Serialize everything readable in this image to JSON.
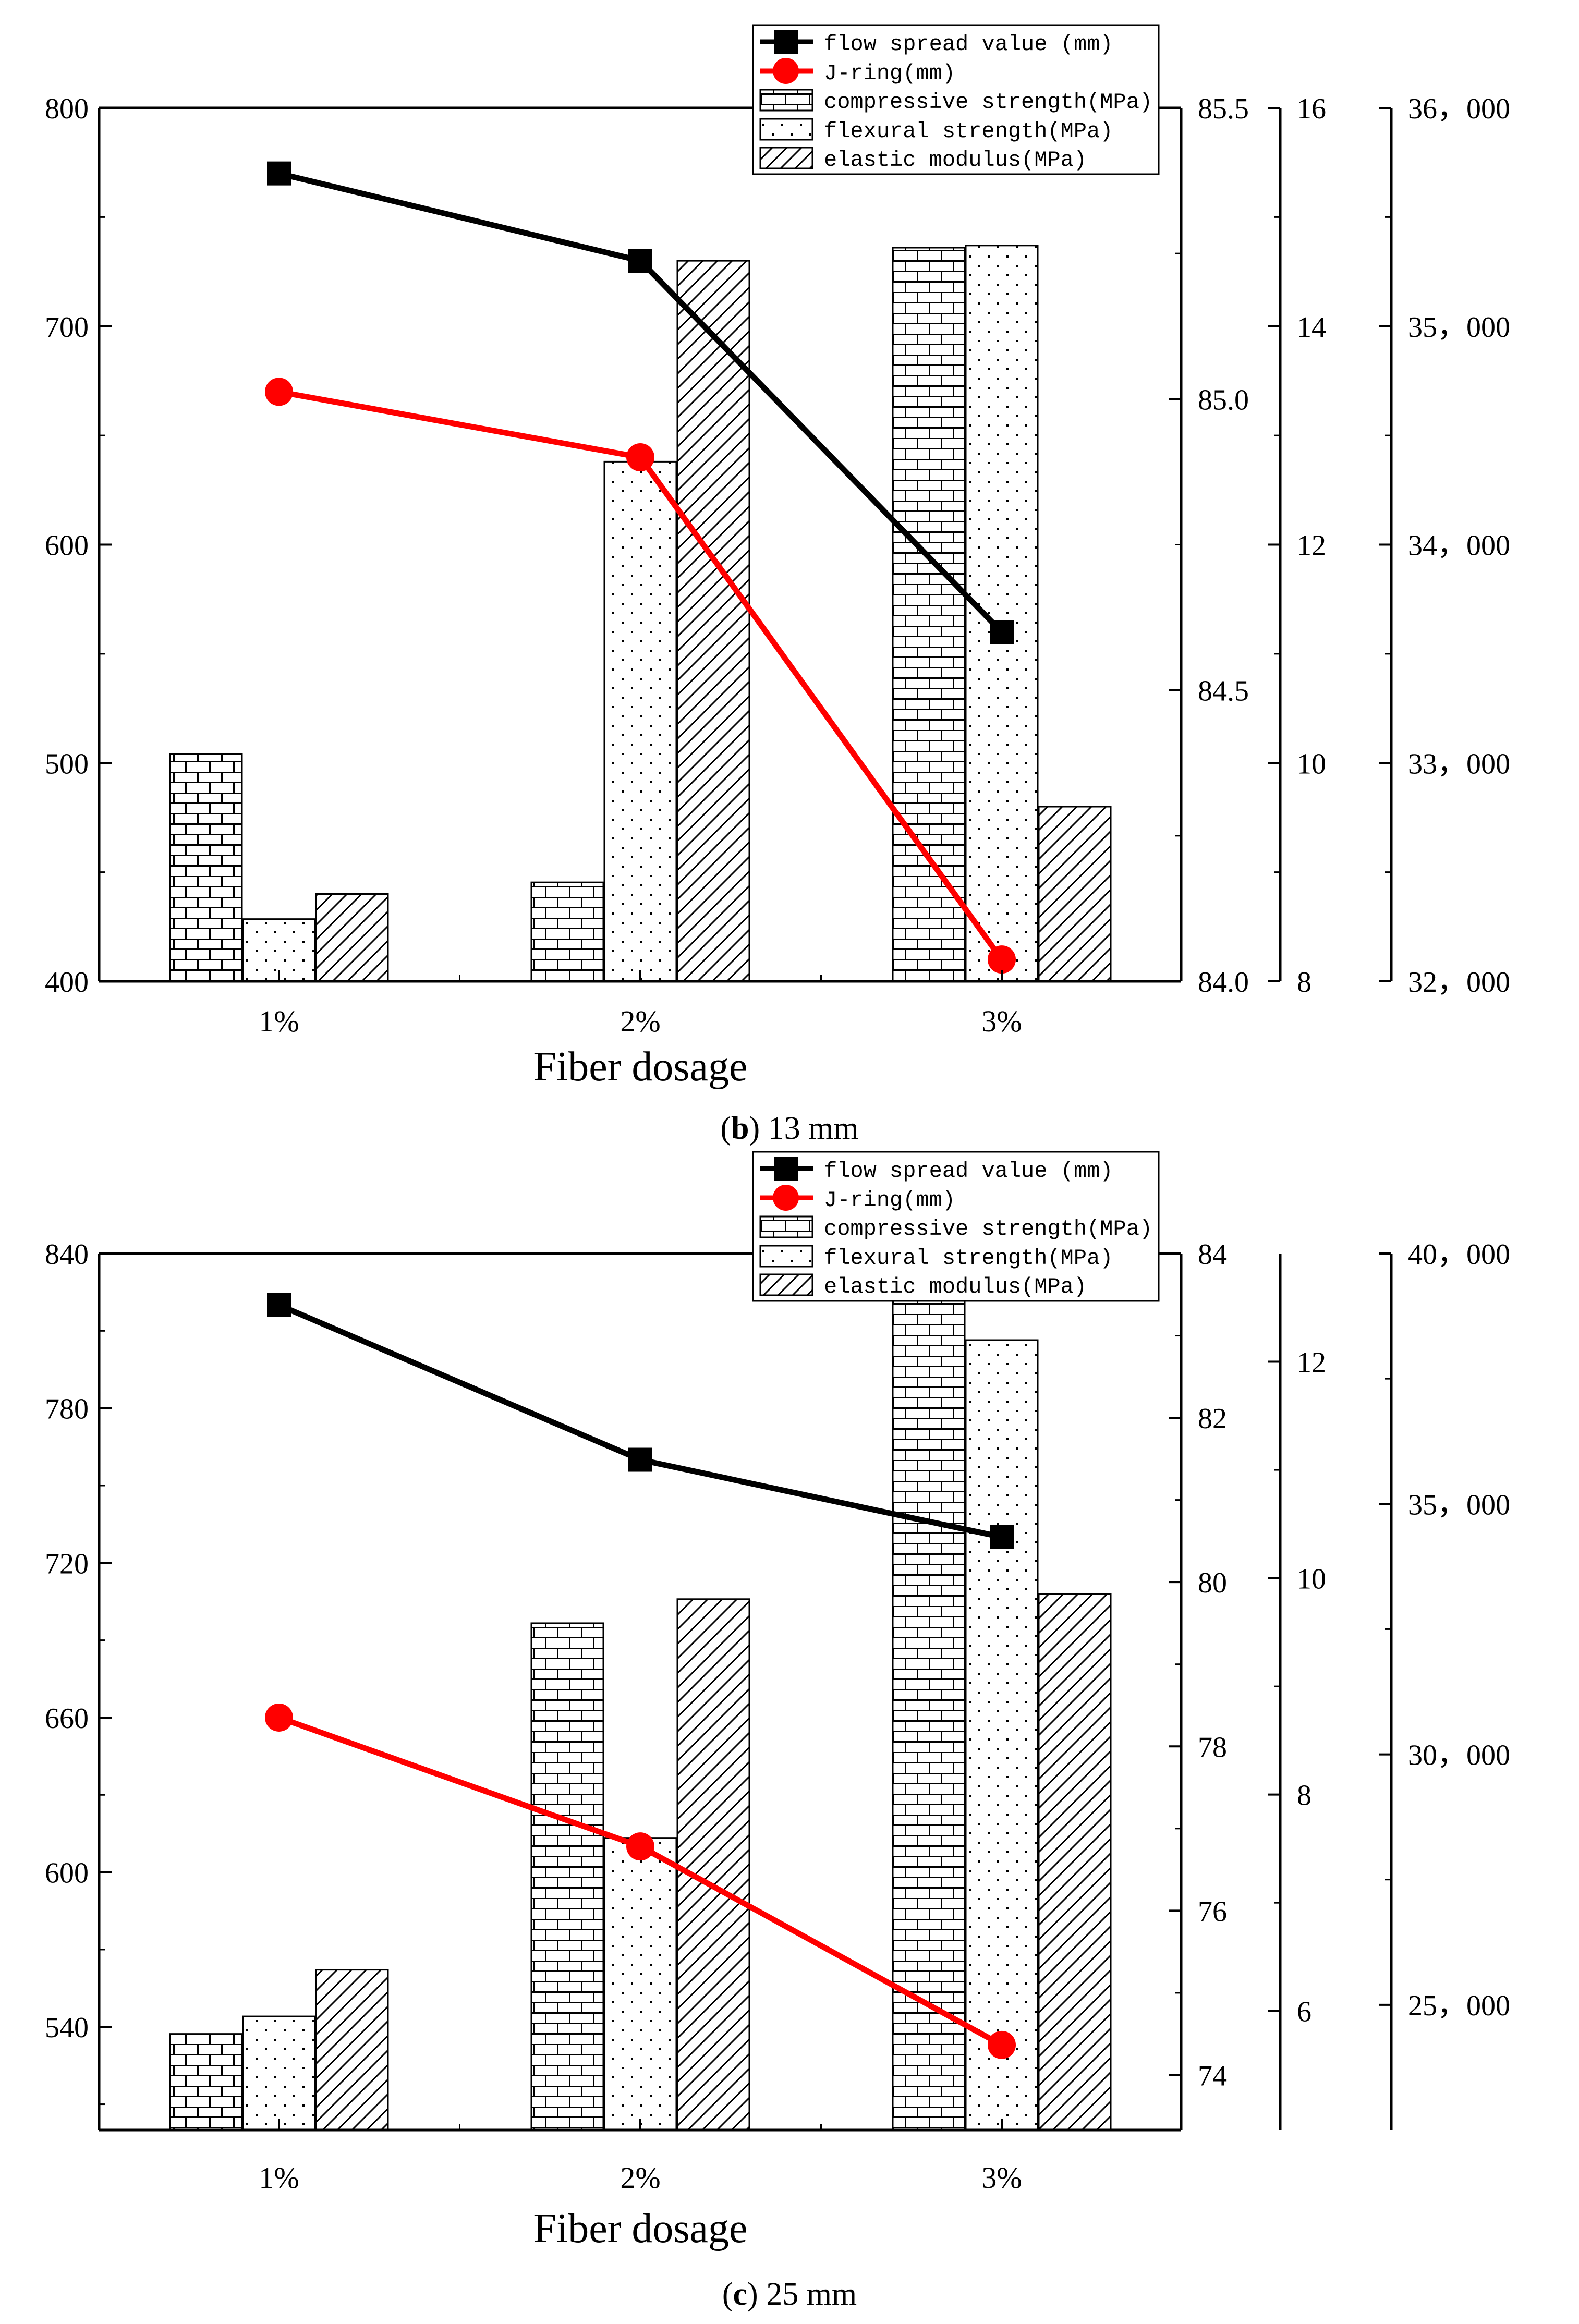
{
  "chart_data": [
    {
      "type": "bar",
      "caption_label": "b",
      "caption_text": " 13 mm",
      "xlabel": "Fiber dosage",
      "categories": [
        "1%",
        "2%",
        "3%"
      ],
      "legend": {
        "placement": "top-right",
        "entries": [
          "flow spread value (mm)",
          "J-ring(mm)",
          "compressive strength(MPa)",
          "flexural strength(MPa)",
          "elastic modulus(MPa)"
        ]
      },
      "axes": {
        "left": {
          "min": 400,
          "max": 800,
          "ticks": [
            400,
            500,
            600,
            700,
            800
          ],
          "tick_labels": [
            "400",
            "500",
            "600",
            "700",
            "800"
          ]
        },
        "right1": {
          "min": 84.0,
          "max": 85.5,
          "ticks": [
            84.0,
            84.5,
            85.0,
            85.5
          ],
          "tick_labels": [
            "84.0",
            "84.5",
            "85.0",
            "85.5"
          ]
        },
        "right2": {
          "min": 8,
          "max": 16,
          "ticks": [
            8,
            10,
            12,
            14,
            16
          ],
          "tick_labels": [
            "8",
            "10",
            "12",
            "14",
            "16"
          ]
        },
        "right3": {
          "min": 32000,
          "max": 36000,
          "ticks": [
            32000,
            33000,
            34000,
            35000,
            36000
          ],
          "tick_labels": [
            "32，000",
            "33，000",
            "34，000",
            "35，000",
            "36，000"
          ]
        }
      },
      "series": [
        {
          "name": "flow spread value (mm)",
          "kind": "line",
          "axis": "left",
          "color": "#000000",
          "marker": "square",
          "values": [
            770,
            730,
            560
          ]
        },
        {
          "name": "J-ring(mm)",
          "kind": "line",
          "axis": "left",
          "color": "#ff0000",
          "marker": "circle",
          "values": [
            670,
            640,
            410
          ]
        },
        {
          "name": "compressive strength(MPa)",
          "kind": "bar",
          "axis": "right1",
          "pattern": "brick",
          "values": [
            84.39,
            84.17,
            85.26
          ]
        },
        {
          "name": "flexural strength(MPa)",
          "kind": "bar",
          "axis": "right2",
          "pattern": "dots",
          "values": [
            8.57,
            12.76,
            14.74
          ]
        },
        {
          "name": "elastic modulus(MPa)",
          "kind": "bar",
          "axis": "right3",
          "pattern": "hatch",
          "values": [
            32400,
            35300,
            32800
          ]
        }
      ]
    },
    {
      "type": "bar",
      "caption_label": "c",
      "caption_text": " 25 mm",
      "xlabel": "Fiber dosage",
      "categories": [
        "1%",
        "2%",
        "3%"
      ],
      "legend": {
        "placement": "top-right",
        "entries": [
          "flow spread value (mm)",
          "J-ring(mm)",
          "compressive strength(MPa)",
          "flexural strength(MPa)",
          "elastic modulus(MPa)"
        ]
      },
      "axes": {
        "left": {
          "min": 500,
          "max": 840,
          "ticks": [
            540,
            600,
            660,
            720,
            780,
            840
          ],
          "minor_ticks": [
            510,
            570,
            630,
            690,
            750,
            810
          ],
          "tick_labels": [
            "540",
            "600",
            "660",
            "720",
            "780",
            "840"
          ]
        },
        "right1": {
          "min": 73.33,
          "max": 84,
          "ticks": [
            74,
            76,
            78,
            80,
            82,
            84
          ],
          "tick_labels": [
            "74",
            "76",
            "78",
            "80",
            "82",
            "84"
          ]
        },
        "right2": {
          "min": 4.9,
          "max": 13,
          "ticks": [
            6,
            8,
            10,
            12
          ],
          "tick_labels": [
            "6",
            "8",
            "10",
            "12"
          ]
        },
        "right3": {
          "min": 22500,
          "max": 40000,
          "ticks": [
            25000,
            30000,
            35000,
            40000
          ],
          "tick_labels": [
            "25，000",
            "30，000",
            "35，000",
            "40，000"
          ]
        }
      },
      "series": [
        {
          "name": "flow spread value (mm)",
          "kind": "line",
          "axis": "left",
          "color": "#000000",
          "marker": "square",
          "values": [
            820,
            760,
            730
          ]
        },
        {
          "name": "J-ring(mm)",
          "kind": "line",
          "axis": "left",
          "color": "#ff0000",
          "marker": "circle",
          "values": [
            660,
            610,
            533
          ]
        },
        {
          "name": "compressive strength(MPa)",
          "kind": "bar",
          "axis": "right1",
          "pattern": "brick",
          "values": [
            74.5,
            79.5,
            83.8
          ]
        },
        {
          "name": "flexural strength(MPa)",
          "kind": "bar",
          "axis": "right2",
          "pattern": "dots",
          "values": [
            5.95,
            7.6,
            12.2
          ]
        },
        {
          "name": "elastic modulus(MPa)",
          "kind": "bar",
          "axis": "right3",
          "pattern": "hatch",
          "values": [
            25700,
            33100,
            33200
          ]
        }
      ]
    }
  ]
}
